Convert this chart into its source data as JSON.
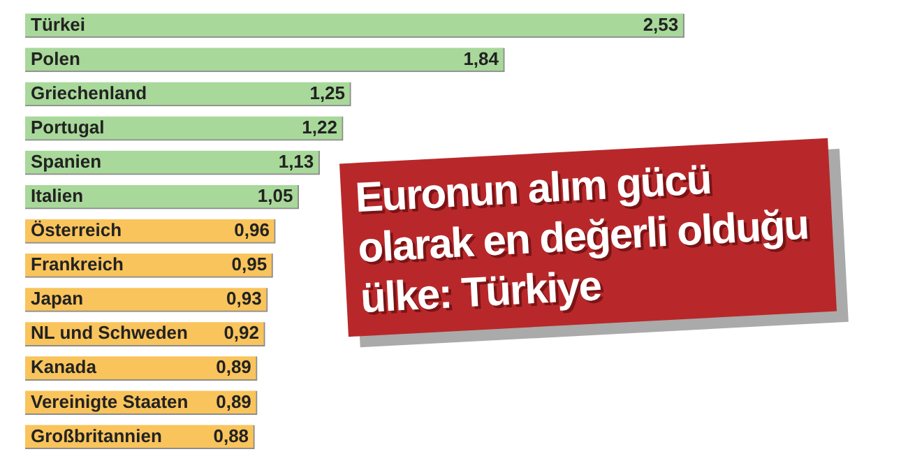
{
  "chart_data": {
    "type": "bar",
    "orientation": "horizontal",
    "title": "Euronun alım gücü olarak en değerli olduğu ülke: Türkiye",
    "categories": [
      "Türkei",
      "Polen",
      "Griechenland",
      "Portugal",
      "Spanien",
      "Italien",
      "Österreich",
      "Frankreich",
      "Japan",
      "NL und Schweden",
      "Kanada",
      "Vereinigte Staaten",
      "Großbritannien"
    ],
    "values": [
      2.53,
      1.84,
      1.25,
      1.22,
      1.13,
      1.05,
      0.96,
      0.95,
      0.93,
      0.92,
      0.89,
      0.89,
      0.88
    ],
    "colors": [
      "#a8d89a",
      "#a8d89a",
      "#a8d89a",
      "#a8d89a",
      "#a8d89a",
      "#a8d89a",
      "#f9c45c",
      "#f9c45c",
      "#f9c45c",
      "#f9c45c",
      "#f9c45c",
      "#f9c45c",
      "#f9c45c"
    ],
    "value_labels": [
      "2,53",
      "1,84",
      "1,25",
      "1,22",
      "1,13",
      "1,05",
      "0,96",
      "0,95",
      "0,93",
      "0,92",
      "0,89",
      "0,89",
      "0,88"
    ],
    "legend": false
  }
}
